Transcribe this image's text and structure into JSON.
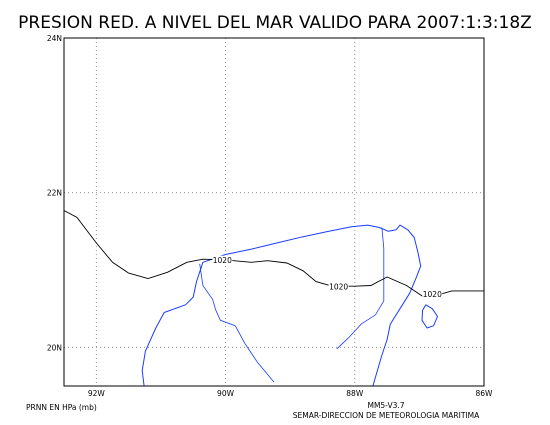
{
  "figure": {
    "title": "PRESION RED. A NIVEL DEL MAR VALIDO PARA 2007:1:3:18Z",
    "variable_label": "PRNN EN HPa (mb)",
    "model_label": "MM5-V3.7",
    "organization_label": "SEMAR-DIRECCION DE METEOROLOGIA MARITIMA"
  },
  "map": {
    "lon_range": [
      -92.5,
      -86
    ],
    "lat_range": [
      19.5,
      24
    ],
    "x_ticks": [
      {
        "value": -92,
        "label": "92W"
      },
      {
        "value": -90,
        "label": "90W"
      },
      {
        "value": -88,
        "label": "88W"
      },
      {
        "value": -86,
        "label": "86W"
      }
    ],
    "y_ticks": [
      {
        "value": 20,
        "label": "20N"
      },
      {
        "value": 22,
        "label": "22N"
      },
      {
        "value": 24,
        "label": "24N"
      }
    ],
    "grid": true,
    "colors": {
      "coastline": "#1a3cff",
      "isobar": "#000000",
      "grid": "#808080"
    }
  },
  "isobars": [
    {
      "value": 1020,
      "labels": [
        "1020",
        "1020",
        "1020"
      ],
      "label_points": [
        [
          -90.05,
          21.12
        ],
        [
          -88.25,
          20.78
        ],
        [
          -86.8,
          20.68
        ]
      ],
      "points": [
        [
          -92.5,
          21.77
        ],
        [
          -92.3,
          21.68
        ],
        [
          -92.0,
          21.35
        ],
        [
          -91.75,
          21.1
        ],
        [
          -91.5,
          20.96
        ],
        [
          -91.2,
          20.89
        ],
        [
          -90.9,
          20.97
        ],
        [
          -90.6,
          21.1
        ],
        [
          -90.35,
          21.14
        ],
        [
          -90.0,
          21.13
        ],
        [
          -89.6,
          21.1
        ],
        [
          -89.35,
          21.12
        ],
        [
          -89.05,
          21.09
        ],
        [
          -88.8,
          20.99
        ],
        [
          -88.6,
          20.85
        ],
        [
          -88.35,
          20.79
        ],
        [
          -88.0,
          20.79
        ],
        [
          -87.75,
          20.8
        ],
        [
          -87.5,
          20.91
        ],
        [
          -87.2,
          20.8
        ],
        [
          -86.95,
          20.66
        ],
        [
          -86.7,
          20.68
        ],
        [
          -86.5,
          20.73
        ],
        [
          -86.0,
          20.73
        ]
      ]
    }
  ],
  "coastlines": [
    {
      "name": "yucatan-peninsula",
      "points": [
        [
          -91.26,
          19.5
        ],
        [
          -91.29,
          19.7
        ],
        [
          -91.24,
          19.95
        ],
        [
          -91.08,
          20.25
        ],
        [
          -90.95,
          20.45
        ],
        [
          -90.62,
          20.55
        ],
        [
          -90.5,
          20.65
        ],
        [
          -90.45,
          20.85
        ],
        [
          -90.35,
          21.1
        ],
        [
          -90.0,
          21.2
        ],
        [
          -89.6,
          21.27
        ],
        [
          -89.2,
          21.35
        ],
        [
          -88.8,
          21.43
        ],
        [
          -88.4,
          21.5
        ],
        [
          -88.05,
          21.56
        ],
        [
          -87.8,
          21.58
        ],
        [
          -87.62,
          21.55
        ],
        [
          -87.48,
          21.5
        ],
        [
          -87.36,
          21.52
        ],
        [
          -87.3,
          21.58
        ],
        [
          -87.18,
          21.52
        ],
        [
          -87.08,
          21.42
        ],
        [
          -87.02,
          21.22
        ],
        [
          -86.98,
          21.05
        ],
        [
          -87.05,
          20.9
        ],
        [
          -87.15,
          20.7
        ],
        [
          -87.3,
          20.5
        ],
        [
          -87.45,
          20.3
        ],
        [
          -87.5,
          20.1
        ],
        [
          -87.58,
          19.9
        ],
        [
          -87.65,
          19.7
        ],
        [
          -87.72,
          19.5
        ]
      ]
    },
    {
      "name": "cozumel-island",
      "points": [
        [
          -86.9,
          20.55
        ],
        [
          -86.8,
          20.5
        ],
        [
          -86.72,
          20.4
        ],
        [
          -86.78,
          20.28
        ],
        [
          -86.88,
          20.25
        ],
        [
          -86.96,
          20.35
        ],
        [
          -86.95,
          20.48
        ],
        [
          -86.9,
          20.55
        ]
      ]
    }
  ],
  "borders": [
    {
      "name": "campeche-yucatan-quintana-roo",
      "points": [
        [
          -89.25,
          19.55
        ],
        [
          -89.5,
          19.8
        ],
        [
          -89.7,
          20.05
        ],
        [
          -89.85,
          20.28
        ],
        [
          -90.08,
          20.35
        ],
        [
          -90.15,
          20.48
        ],
        [
          -90.2,
          20.62
        ],
        [
          -90.35,
          20.8
        ],
        [
          -90.4,
          21.08
        ]
      ]
    },
    {
      "name": "yucatan-quintana-roo",
      "points": [
        [
          -88.28,
          19.98
        ],
        [
          -88.1,
          20.12
        ],
        [
          -87.9,
          20.3
        ],
        [
          -87.68,
          20.42
        ],
        [
          -87.55,
          20.6
        ],
        [
          -87.55,
          20.88
        ],
        [
          -87.55,
          21.28
        ],
        [
          -87.58,
          21.55
        ]
      ]
    }
  ]
}
